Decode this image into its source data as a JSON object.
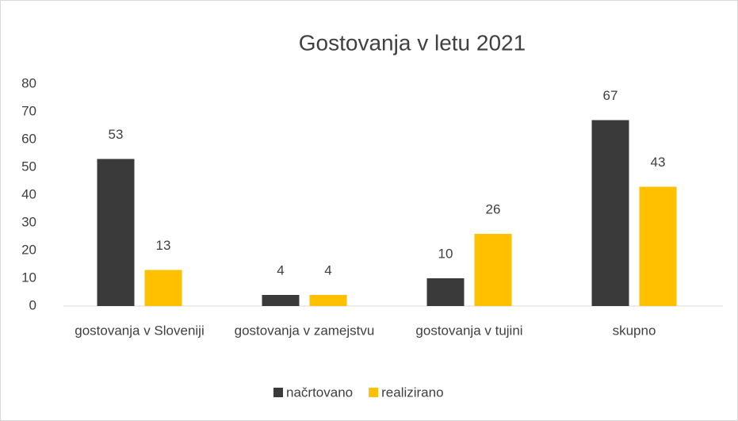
{
  "chart_data": {
    "type": "bar",
    "title": "Gostovanja v letu 2021",
    "categories": [
      "gostovanja v Sloveniji",
      "gostovanja v zamejstvu",
      "gostovanja v tujini",
      "skupno"
    ],
    "series": [
      {
        "name": "načrtovano",
        "color": "#3a3a3a",
        "values": [
          53,
          4,
          10,
          67
        ]
      },
      {
        "name": "realizirano",
        "color": "#ffc000",
        "values": [
          13,
          4,
          26,
          43
        ]
      }
    ],
    "ylim": [
      0,
      80
    ],
    "yticks": [
      0,
      10,
      20,
      30,
      40,
      50,
      60,
      70,
      80
    ],
    "grid": false,
    "legend": "bottom"
  }
}
